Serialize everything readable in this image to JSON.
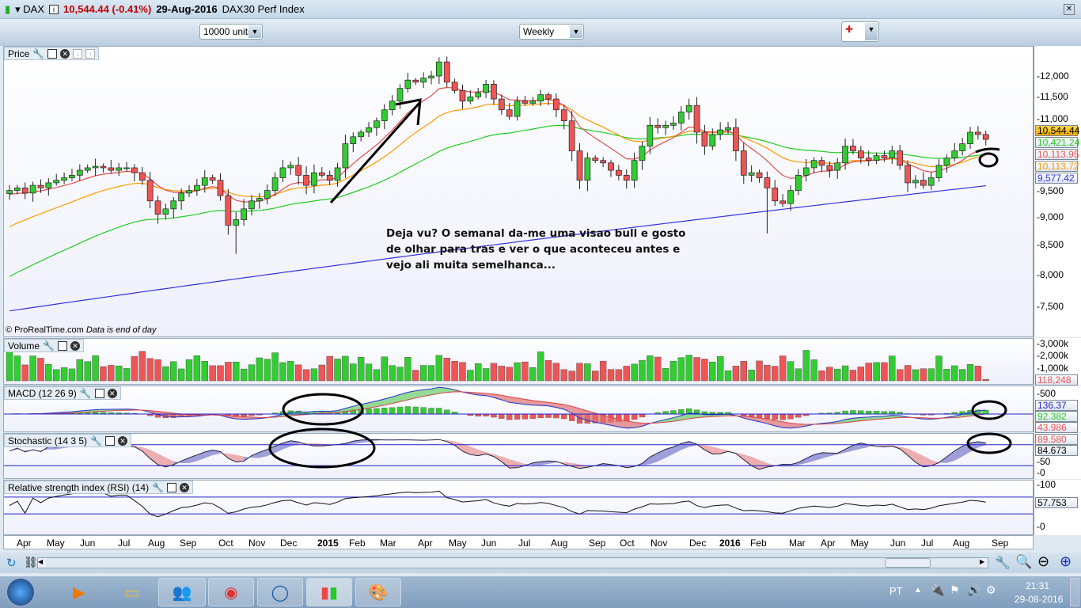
{
  "title": {
    "symbol": "DAX",
    "price": "10,544.44 (-0.41%)",
    "date": "29-Aug-2016",
    "name": "DAX30 Perf Index",
    "price_color": "#c00000"
  },
  "toolbar": {
    "units": "10000 units",
    "timeframe": "Weekly"
  },
  "panels": {
    "price": {
      "label": "Price",
      "credit": "© ProRealTime.com",
      "credit_note": "Data is end of day",
      "ticks": [
        "12,000",
        "11,500",
        "11,000",
        "10,500",
        "10,000",
        "9,500",
        "9,000",
        "8,500",
        "8,000",
        "7,500"
      ],
      "tags": [
        "10,544.44",
        "10,421.24",
        "10,113.95",
        "10,113.72",
        "9,577.42"
      ]
    },
    "volume": {
      "label": "Volume",
      "ticks": [
        "3,000k",
        "2,000k",
        "1,000k"
      ],
      "tag": "118,248"
    },
    "macd": {
      "label": "MACD (12 26 9)",
      "ticks": [
        "500"
      ],
      "tags": [
        "136.37",
        "92.382",
        "43.986"
      ]
    },
    "stoch": {
      "label": "Stochastic (14 3 5)",
      "ticks": [
        "50",
        "0"
      ],
      "tags": [
        "89.580",
        "84.673"
      ]
    },
    "rsi": {
      "label": "Relative strength index (RSI) (14)",
      "ticks": [
        "100",
        "0"
      ],
      "tag": "57.753"
    }
  },
  "note": "Deja vu? O semanal da-me uma visao bull e gosto de olhar para tras e ver o que aconteceu antes e vejo ali muita semelhanca...",
  "date_axis": [
    "Apr",
    "May",
    "Jun",
    "Jul",
    "Aug",
    "Sep",
    "Oct",
    "Nov",
    "Dec",
    "2015",
    "Feb",
    "Mar",
    "Apr",
    "May",
    "Jun",
    "Jul",
    "Aug",
    "Sep",
    "Oct",
    "Nov",
    "Dec",
    "2016",
    "Feb",
    "Mar",
    "Apr",
    "May",
    "Jun",
    "Jul",
    "Aug",
    "Sep"
  ],
  "taskbar": {
    "lang": "PT",
    "time": "21:31",
    "date": "29-08-2016"
  },
  "colors": {
    "up": "#33cc33",
    "down": "#ee5555",
    "ma_fast": "#e05050",
    "ma_mid": "#ff9900",
    "ma_slow": "#22cc22",
    "ma_long": "#3333dd"
  },
  "chart_data": {
    "type": "candlestick",
    "interval": "weekly",
    "scale": "log",
    "ylim": [
      7300,
      12500
    ],
    "closes": [
      9500,
      9550,
      9450,
      9600,
      9550,
      9650,
      9700,
      9750,
      9800,
      9900,
      9950,
      9980,
      9950,
      9900,
      9950,
      9950,
      9850,
      9700,
      9300,
      9050,
      9150,
      9300,
      9450,
      9500,
      9600,
      9750,
      9700,
      9400,
      8850,
      8950,
      9150,
      9300,
      9350,
      9500,
      9750,
      9950,
      10000,
      9800,
      9600,
      9850,
      9800,
      9700,
      9950,
      10450,
      10600,
      10700,
      10800,
      10950,
      11200,
      11400,
      11700,
      11900,
      11850,
      11950,
      12000,
      12350,
      11850,
      11650,
      11400,
      11500,
      11600,
      11800,
      11450,
      11200,
      11050,
      11400,
      11350,
      11400,
      11550,
      11450,
      11200,
      10950,
      10300,
      9700,
      10150,
      10100,
      10050,
      9900,
      9800,
      9700,
      10100,
      10400,
      10850,
      10800,
      10850,
      10900,
      11150,
      11300,
      10700,
      10400,
      10650,
      10750,
      10800,
      10300,
      9800,
      9850,
      9750,
      9550,
      9300,
      9250,
      9500,
      9800,
      9950,
      10100,
      10000,
      9900,
      10050,
      10400,
      10300,
      10150,
      10100,
      10200,
      10150,
      10300,
      10000,
      9650,
      9700,
      9600,
      9750,
      10000,
      10150,
      10300,
      10450,
      10700,
      10650,
      10544.44
    ]
  }
}
